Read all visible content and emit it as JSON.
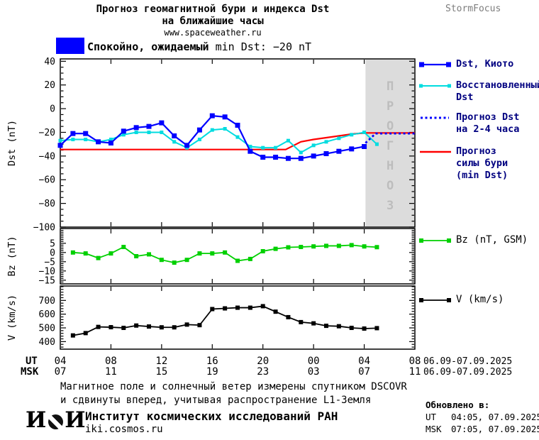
{
  "header": {
    "title_line1": "Прогноз геомагнитной бури и индекса Dst",
    "title_line2": "на ближайшие часы",
    "site": "www.spaceweather.ru",
    "brand": "StormFocus"
  },
  "status": {
    "label_bold": "Спокойно, ожидаемый",
    "label_rest": " min Dst: −20 nT",
    "box_color": "#0000ff"
  },
  "chart_data": [
    {
      "id": "dst",
      "type": "line",
      "ylabel": "Dst (nT)",
      "ylim": [
        42,
        -100
      ],
      "xlim_hours": [
        4,
        32
      ],
      "yticks": [
        40,
        20,
        0,
        -20,
        -40,
        -60,
        -80,
        -100
      ],
      "ytick_minor_step": 5,
      "xticks_hours": [
        8,
        12,
        16,
        20,
        24,
        28
      ],
      "forecast_region": {
        "start_hour": 28.1,
        "end_hour": 32,
        "fill": "#dcdcdc",
        "label": "ПРОГНОЗ",
        "label_color": "#bdbdbd"
      },
      "series": [
        {
          "key": "storm-strength-forecast",
          "name": "Прогноз силы бури (min Dst)",
          "color": "#ff0000",
          "width": 2.2,
          "points": [
            [
              4,
              -34.5
            ],
            [
              21.8,
              -34.5
            ],
            [
              23,
              -28
            ],
            [
              24,
              -26
            ],
            [
              25,
              -24.5
            ],
            [
              26,
              -23
            ],
            [
              27,
              -21.5
            ],
            [
              28,
              -20.5
            ],
            [
              32,
              -20.5
            ]
          ]
        },
        {
          "key": "dst-reconstructed",
          "name": "Восстановленный Dst",
          "color": "#00dce0",
          "width": 2,
          "marker": 5,
          "x_start": 4,
          "x_step": 1,
          "values": [
            -27,
            -26,
            -26,
            -28,
            -26,
            -22,
            -20,
            -20,
            -20,
            -28,
            -33,
            -26,
            -18,
            -17,
            -24,
            -32,
            -33,
            -33,
            -27,
            -37,
            -31,
            -28,
            -25,
            -22,
            -20,
            -30
          ]
        },
        {
          "key": "dst-kyoto",
          "name": "Dst, Киото",
          "color": "#0000ff",
          "width": 2.2,
          "marker": 7,
          "x_start": 4,
          "x_step": 1,
          "values": [
            -31,
            -21,
            -21,
            -28,
            -29,
            -19,
            -16,
            -15,
            -12,
            -23,
            -31,
            -18,
            -6,
            -7,
            -14,
            -36,
            -41,
            -41,
            -42,
            -42,
            -40,
            -38,
            -36,
            -34,
            -32
          ]
        },
        {
          "key": "dst-forecast-dotted",
          "name": "Прогноз Dst на 2-4 часа",
          "color": "#0000ff",
          "width": 2.8,
          "dash": "3,3.5",
          "points": [
            [
              28.1,
              -29
            ],
            [
              28.9,
              -21
            ],
            [
              32,
              -21
            ]
          ]
        }
      ]
    },
    {
      "id": "bz",
      "type": "line",
      "ylabel": "Bz (nT)",
      "ylim": [
        13,
        -17
      ],
      "xlim_hours": [
        4,
        32
      ],
      "yticks": [
        5,
        0,
        -5,
        -10,
        -15
      ],
      "ytick_minor_step": 1,
      "xticks_hours": [
        8,
        12,
        16,
        20,
        24,
        28
      ],
      "series": [
        {
          "key": "bz",
          "name": "Bz (nT, GSM)",
          "color": "#00d000",
          "width": 1.8,
          "marker": 6,
          "x_start": 5,
          "x_step": 1,
          "values": [
            0,
            -0.5,
            -3,
            -0.5,
            3,
            -2,
            -1,
            -4,
            -5.5,
            -4,
            -0.5,
            -0.5,
            0,
            -4.5,
            -3.5,
            0.7,
            2,
            2.8,
            3,
            3.3,
            3.6,
            3.6,
            4,
            3.3,
            2.9
          ]
        }
      ]
    },
    {
      "id": "v",
      "type": "line",
      "ylabel": "V (km/s)",
      "ylim": [
        805,
        345
      ],
      "xlim_hours": [
        4,
        32
      ],
      "yticks": [
        700,
        600,
        500,
        400
      ],
      "ytick_minor_step": 20,
      "xticks_hours": [
        8,
        12,
        16,
        20,
        24,
        28
      ],
      "series": [
        {
          "key": "v",
          "name": "V (km/s)",
          "color": "#000000",
          "width": 1.8,
          "marker": 6,
          "x_start": 5,
          "x_step": 1,
          "values": [
            445,
            462,
            507,
            505,
            500,
            517,
            510,
            504,
            504,
            524,
            520,
            637,
            642,
            647,
            647,
            658,
            618,
            578,
            542,
            533,
            515,
            512,
            500,
            495,
            498
          ]
        }
      ]
    }
  ],
  "xaxis": {
    "ut_label": "UT",
    "msk_label": "MSK",
    "tick_hours": [
      4,
      8,
      12,
      16,
      20,
      24,
      28,
      32
    ],
    "ut_hours": [
      "04",
      "08",
      "12",
      "16",
      "20",
      "00",
      "04",
      "08"
    ],
    "msk_hours": [
      "07",
      "11",
      "15",
      "19",
      "23",
      "03",
      "07",
      "11"
    ],
    "ut_date": "06.09-07.09.2025",
    "msk_date": "06.09-07.09.2025"
  },
  "legend_dst": [
    {
      "label": "Dst, Киото",
      "label2": "",
      "label3": "",
      "color": "#0000ff"
    },
    {
      "label": "Восстановленный",
      "label2": "Dst",
      "label3": "",
      "color": "#00dce0"
    },
    {
      "label": "Прогноз Dst",
      "label2": "на 2-4 часа",
      "label3": "",
      "color": "#0000ff"
    },
    {
      "label": "Прогноз",
      "label2": "силы бури",
      "label3": "(min Dst)",
      "color": "#ff0000"
    }
  ],
  "legend_bz": {
    "label": "Bz (nT, GSM)",
    "color": "#00d000"
  },
  "legend_v": {
    "label": "V (km/s)",
    "color": "#000000"
  },
  "footnote": {
    "line1": "Магнитное поле и солнечный ветер измерены спутником DSCOVR",
    "line2": "и сдвинуты вперед, учитывая распространение L1-Земля"
  },
  "institute": {
    "logo_left": "И",
    "logo_right": "И",
    "name": "Институт космических исследований РАН",
    "site": "iki.cosmos.ru"
  },
  "updated": {
    "title": "Обновлено в:",
    "ut_label": "UT",
    "ut_value": "04:05, 07.09.2025",
    "msk_label": "MSK",
    "msk_value": "07:05, 07.09.2025"
  }
}
